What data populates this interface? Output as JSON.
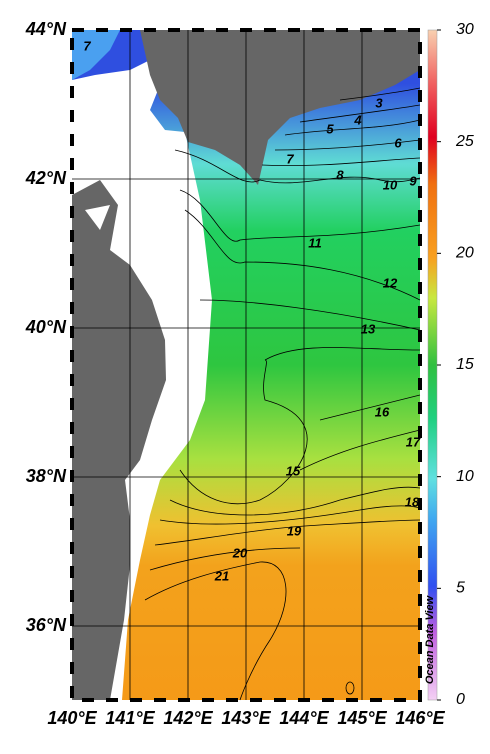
{
  "map": {
    "lat_labels": [
      "44°N",
      "42°N",
      "40°N",
      "38°N",
      "36°N"
    ],
    "lon_labels": [
      "140°E",
      "141°E",
      "142°E",
      "143°E",
      "144°E",
      "145°E",
      "146°E"
    ],
    "contour_labels": [
      3,
      4,
      5,
      6,
      7,
      8,
      10,
      9,
      11,
      12,
      13,
      16,
      17,
      15,
      18,
      19,
      20,
      21,
      7
    ]
  },
  "colorbar": {
    "range": [
      0,
      30
    ],
    "ticks": [
      0,
      5,
      10,
      15,
      20,
      25,
      30
    ]
  },
  "watermark": "Ocean Data View"
}
